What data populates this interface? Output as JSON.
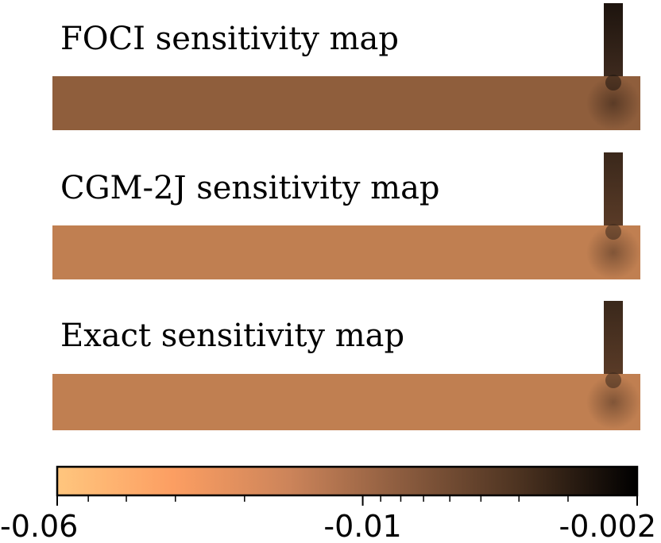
{
  "chart_data": {
    "type": "heatmap",
    "panels": [
      {
        "title": "FOCI sensitivity map",
        "domain_color": "#8f5e3c",
        "pipe_top_color": "#1d140e",
        "pipe_bottom_color": "#3e2a1e",
        "hotspot_color": "#301f15"
      },
      {
        "title": "CGM-2J sensitivity map",
        "domain_color": "#c07f51",
        "pipe_top_color": "#3a281b",
        "pipe_bottom_color": "#5a3b27",
        "hotspot_color": "#4c3222"
      },
      {
        "title": "Exact sensitivity map",
        "domain_color": "#c07f51",
        "pipe_top_color": "#3a281b",
        "pipe_bottom_color": "#5a3b27",
        "hotspot_color": "#4c3222"
      }
    ],
    "colorbar": {
      "scale": "log",
      "range": [
        -0.06,
        -0.002
      ],
      "tick_labels": [
        "-0.06",
        "-0.01",
        "-0.002"
      ],
      "tick_values": [
        -0.06,
        -0.01,
        -0.002
      ],
      "colormap": "copper_r",
      "colormap_stops": [
        "#ffc67e",
        "#fc9e62",
        "#cc845a",
        "#8a5b3e",
        "#4b3220",
        "#000000"
      ]
    }
  }
}
